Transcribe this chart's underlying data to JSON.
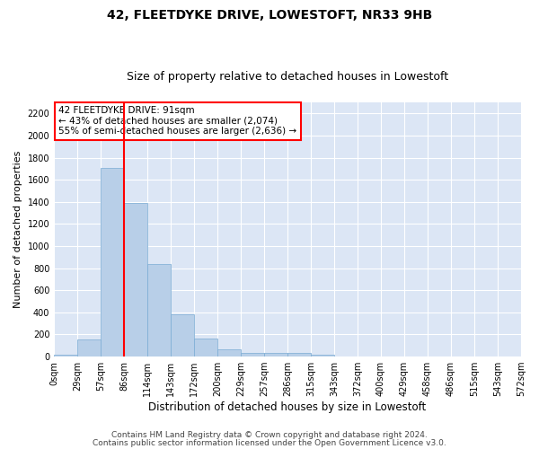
{
  "title": "42, FLEETDYKE DRIVE, LOWESTOFT, NR33 9HB",
  "subtitle": "Size of property relative to detached houses in Lowestoft",
  "xlabel": "Distribution of detached houses by size in Lowestoft",
  "ylabel": "Number of detached properties",
  "bar_values": [
    20,
    155,
    1710,
    1390,
    835,
    385,
    165,
    65,
    35,
    30,
    30,
    20,
    0,
    0,
    0,
    0,
    0,
    0,
    0,
    0
  ],
  "bar_labels": [
    "0sqm",
    "29sqm",
    "57sqm",
    "86sqm",
    "114sqm",
    "143sqm",
    "172sqm",
    "200sqm",
    "229sqm",
    "257sqm",
    "286sqm",
    "315sqm",
    "343sqm",
    "372sqm",
    "400sqm",
    "429sqm",
    "458sqm",
    "486sqm",
    "515sqm",
    "543sqm",
    "572sqm"
  ],
  "bar_color": "#b8cfe8",
  "bar_edgecolor": "#7aacd4",
  "vline_x": 3,
  "vline_color": "red",
  "annotation_box_text": "42 FLEETDYKE DRIVE: 91sqm\n← 43% of detached houses are smaller (2,074)\n55% of semi-detached houses are larger (2,636) →",
  "ylim": [
    0,
    2300
  ],
  "yticks": [
    0,
    200,
    400,
    600,
    800,
    1000,
    1200,
    1400,
    1600,
    1800,
    2000,
    2200
  ],
  "background_color": "#dce6f5",
  "grid_color": "#ffffff",
  "footer_line1": "Contains HM Land Registry data © Crown copyright and database right 2024.",
  "footer_line2": "Contains public sector information licensed under the Open Government Licence v3.0.",
  "title_fontsize": 10,
  "subtitle_fontsize": 9,
  "xlabel_fontsize": 8.5,
  "ylabel_fontsize": 8,
  "tick_fontsize": 7,
  "annotation_fontsize": 7.5,
  "footer_fontsize": 6.5
}
